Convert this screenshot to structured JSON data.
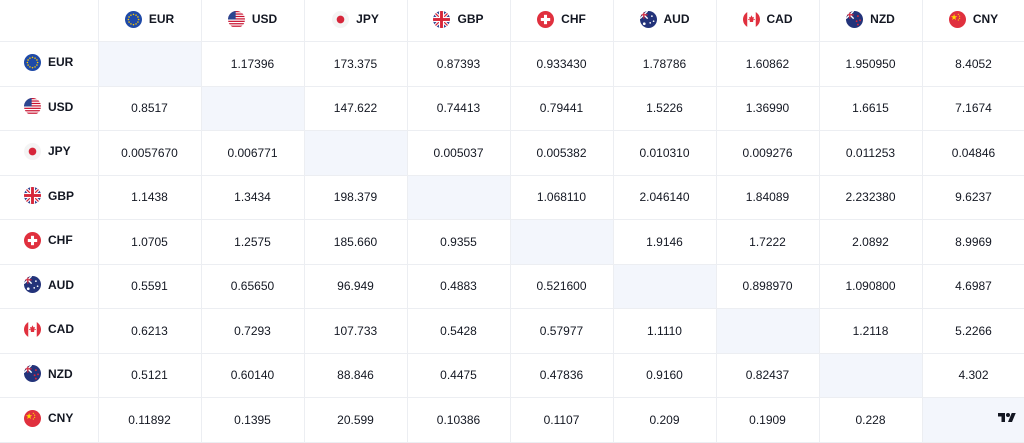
{
  "currencies": [
    {
      "code": "EUR",
      "flag": "eu-flag-icon"
    },
    {
      "code": "USD",
      "flag": "us-flag-icon"
    },
    {
      "code": "JPY",
      "flag": "jp-flag-icon"
    },
    {
      "code": "GBP",
      "flag": "gb-flag-icon"
    },
    {
      "code": "CHF",
      "flag": "ch-flag-icon"
    },
    {
      "code": "AUD",
      "flag": "au-flag-icon"
    },
    {
      "code": "CAD",
      "flag": "ca-flag-icon"
    },
    {
      "code": "NZD",
      "flag": "nz-flag-icon"
    },
    {
      "code": "CNY",
      "flag": "cn-flag-icon"
    }
  ],
  "rows": [
    [
      "",
      "1.17396",
      "173.375",
      "0.87393",
      "0.933430",
      "1.78786",
      "1.60862",
      "1.950950",
      "8.4052"
    ],
    [
      "0.8517",
      "",
      "147.622",
      "0.74413",
      "0.79441",
      "1.5226",
      "1.36990",
      "1.6615",
      "7.1674"
    ],
    [
      "0.0057670",
      "0.006771",
      "",
      "0.005037",
      "0.005382",
      "0.010310",
      "0.009276",
      "0.011253",
      "0.04846"
    ],
    [
      "1.1438",
      "1.3434",
      "198.379",
      "",
      "1.068110",
      "2.046140",
      "1.84089",
      "2.232380",
      "9.6237"
    ],
    [
      "1.0705",
      "1.2575",
      "185.660",
      "0.9355",
      "",
      "1.9146",
      "1.7222",
      "2.0892",
      "8.9969"
    ],
    [
      "0.5591",
      "0.65650",
      "96.949",
      "0.4883",
      "0.521600",
      "",
      "0.898970",
      "1.090800",
      "4.6987"
    ],
    [
      "0.6213",
      "0.7293",
      "107.733",
      "0.5428",
      "0.57977",
      "1.1110",
      "",
      "1.2118",
      "5.2266"
    ],
    [
      "0.5121",
      "0.60140",
      "88.846",
      "0.4475",
      "0.47836",
      "0.9160",
      "0.82437",
      "",
      "4.302"
    ],
    [
      "0.11892",
      "0.1395",
      "20.599",
      "0.10386",
      "0.1107",
      "0.209",
      "0.1909",
      "0.228",
      ""
    ]
  ],
  "colors": {
    "diagonal": "#f3f6fc",
    "border": "#eceef2",
    "text": "#131722"
  },
  "logo_icon": "tradingview-logo-icon"
}
